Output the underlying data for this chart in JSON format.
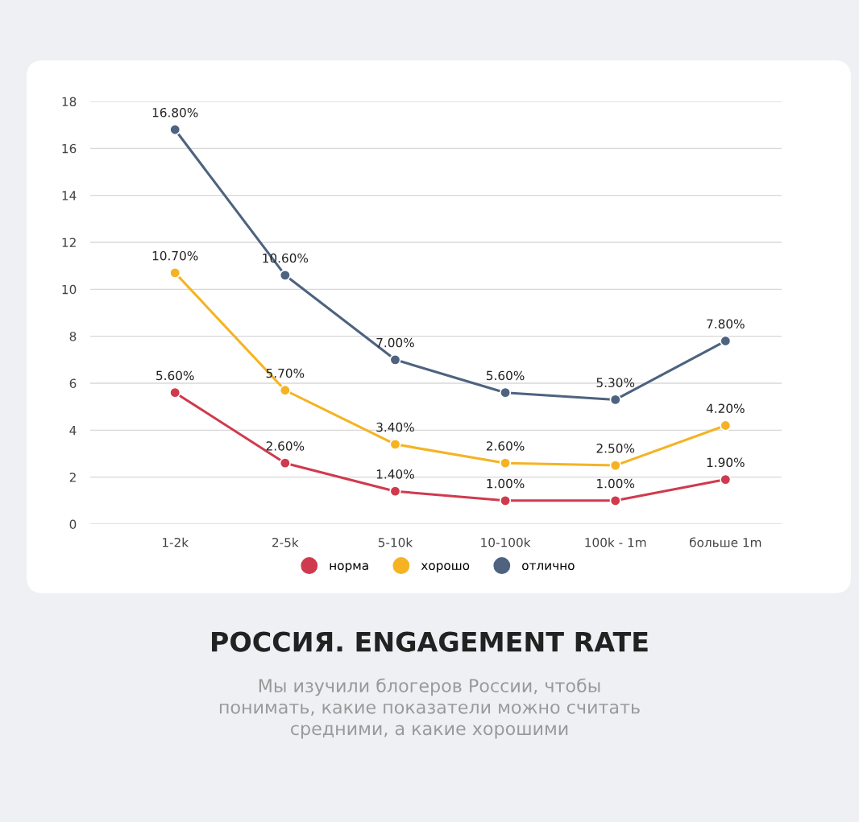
{
  "chart_data": {
    "type": "line",
    "title": "РОССИЯ. ENGAGEMENT RATE",
    "subtitle": "Мы изучили блогеров России, чтобы\nпонимать, какие показатели можно считать\nсредними, а какие хорошими",
    "categories": [
      "1-2k",
      "2-5k",
      "5-10k",
      "10-100k",
      "100k - 1m",
      "больше 1m"
    ],
    "series": [
      {
        "name": "норма",
        "color": "#d03a4e",
        "values": [
          5.6,
          2.6,
          1.4,
          1.0,
          1.0,
          1.9
        ],
        "value_labels": [
          "5.60%",
          "2.60%",
          "1.40%",
          "1.00%",
          "1.00%",
          "1.90%"
        ]
      },
      {
        "name": "хорошо",
        "color": "#f5b323",
        "values": [
          10.7,
          5.7,
          3.4,
          2.6,
          2.5,
          4.2
        ],
        "value_labels": [
          "10.70%",
          "5.70%",
          "3.40%",
          "2.60%",
          "2.50%",
          "4.20%"
        ]
      },
      {
        "name": "отлично",
        "color": "#4d6380",
        "values": [
          16.8,
          10.6,
          7.0,
          5.6,
          5.3,
          7.8
        ],
        "value_labels": [
          "16.80%",
          "10.60%",
          "7.00%",
          "5.60%",
          "5.30%",
          "7.80%"
        ]
      }
    ],
    "ylim": [
      0,
      18
    ],
    "yticks": [
      0,
      2,
      4,
      6,
      8,
      10,
      12,
      14,
      16,
      18
    ],
    "grid": "y",
    "legend": "bottom",
    "marker": "circle",
    "line_style": "solid"
  }
}
